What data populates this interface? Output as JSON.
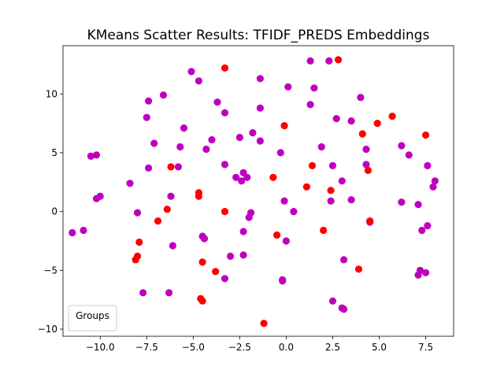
{
  "chart_data": {
    "type": "scatter",
    "title": "KMeans Scatter Results: TFIDF_PREDS Embeddings",
    "xlabel": "",
    "ylabel": "",
    "xlim": [
      -12,
      9
    ],
    "ylim": [
      -10.6,
      14.1
    ],
    "x_ticks": [
      -10,
      -7.5,
      -5,
      -2.5,
      0,
      2.5,
      5,
      7.5
    ],
    "x_tick_labels": [
      "−10.0",
      "−7.5",
      "−5.0",
      "−2.5",
      "0.0",
      "2.5",
      "5.0",
      "7.5"
    ],
    "y_ticks": [
      -10,
      -5,
      0,
      5,
      10
    ],
    "y_tick_labels": [
      "−10",
      "−5",
      "0",
      "5",
      "10"
    ],
    "grid": false,
    "legend": {
      "title": "Groups",
      "placement": "lower-left",
      "entries": []
    },
    "colors": {
      "purple": "#bf00bf",
      "red": "#ff0000"
    },
    "series": [
      {
        "color": "#bf00bf",
        "points": [
          [
            -11.5,
            -1.8
          ],
          [
            -10.9,
            -1.6
          ],
          [
            -10.5,
            4.7
          ],
          [
            -10.2,
            4.8
          ],
          [
            -10.2,
            1.1
          ],
          [
            -10.0,
            1.3
          ],
          [
            -8.4,
            2.4
          ],
          [
            -8.0,
            -0.1
          ],
          [
            -7.7,
            -6.9
          ],
          [
            -7.5,
            8.0
          ],
          [
            -7.4,
            9.4
          ],
          [
            -7.4,
            3.7
          ],
          [
            -7.1,
            5.8
          ],
          [
            -6.6,
            9.9
          ],
          [
            -6.3,
            -6.9
          ],
          [
            -6.2,
            1.3
          ],
          [
            -6.1,
            -2.9
          ],
          [
            -5.8,
            3.8
          ],
          [
            -5.7,
            5.5
          ],
          [
            -5.5,
            7.1
          ],
          [
            -5.1,
            11.9
          ],
          [
            -4.7,
            11.1
          ],
          [
            -4.5,
            -2.1
          ],
          [
            -4.4,
            -2.3
          ],
          [
            -4.3,
            5.3
          ],
          [
            -4.0,
            6.1
          ],
          [
            -3.7,
            9.3
          ],
          [
            -3.3,
            8.4
          ],
          [
            -3.3,
            -5.7
          ],
          [
            -3.3,
            4.0
          ],
          [
            -3.0,
            -3.8
          ],
          [
            -2.7,
            2.9
          ],
          [
            -2.5,
            6.3
          ],
          [
            -2.4,
            2.6
          ],
          [
            -2.3,
            3.3
          ],
          [
            -2.3,
            -3.7
          ],
          [
            -2.3,
            -1.7
          ],
          [
            -2.1,
            2.9
          ],
          [
            -2.0,
            -0.5
          ],
          [
            -1.9,
            -0.1
          ],
          [
            -1.8,
            6.7
          ],
          [
            -1.4,
            8.8
          ],
          [
            -1.4,
            11.3
          ],
          [
            -1.4,
            6.0
          ],
          [
            -0.3,
            5.0
          ],
          [
            -0.2,
            -5.9
          ],
          [
            -0.2,
            -5.8
          ],
          [
            -0.1,
            0.9
          ],
          [
            0.0,
            -2.5
          ],
          [
            0.1,
            10.6
          ],
          [
            0.4,
            0.0
          ],
          [
            1.3,
            12.8
          ],
          [
            1.3,
            9.1
          ],
          [
            1.5,
            10.5
          ],
          [
            1.9,
            5.5
          ],
          [
            2.3,
            12.8
          ],
          [
            2.4,
            0.9
          ],
          [
            2.5,
            3.9
          ],
          [
            2.5,
            -7.6
          ],
          [
            2.7,
            7.9
          ],
          [
            3.0,
            2.6
          ],
          [
            3.0,
            -8.2
          ],
          [
            3.1,
            -4.1
          ],
          [
            3.1,
            -8.3
          ],
          [
            3.5,
            7.7
          ],
          [
            3.5,
            1.0
          ],
          [
            4.0,
            9.7
          ],
          [
            4.3,
            5.3
          ],
          [
            4.3,
            4.0
          ],
          [
            4.5,
            -0.9
          ],
          [
            6.2,
            5.6
          ],
          [
            6.2,
            0.8
          ],
          [
            6.6,
            4.8
          ],
          [
            7.1,
            0.6
          ],
          [
            7.1,
            -5.4
          ],
          [
            7.2,
            -5.0
          ],
          [
            7.3,
            -1.6
          ],
          [
            7.5,
            -5.2
          ],
          [
            7.6,
            3.9
          ],
          [
            7.6,
            -1.2
          ],
          [
            7.9,
            2.1
          ],
          [
            8.0,
            2.6
          ]
        ]
      },
      {
        "color": "#ff0000",
        "points": [
          [
            -8.1,
            -4.1
          ],
          [
            -8.0,
            -3.8
          ],
          [
            -7.9,
            -2.6
          ],
          [
            -6.9,
            -0.8
          ],
          [
            -6.4,
            0.2
          ],
          [
            -6.2,
            3.8
          ],
          [
            -4.7,
            1.6
          ],
          [
            -4.7,
            1.3
          ],
          [
            -4.6,
            -7.4
          ],
          [
            -4.5,
            -7.6
          ],
          [
            -4.5,
            -4.3
          ],
          [
            -3.8,
            -5.1
          ],
          [
            -3.3,
            12.2
          ],
          [
            -3.3,
            0.0
          ],
          [
            -1.2,
            -9.5
          ],
          [
            -0.7,
            2.9
          ],
          [
            -0.5,
            -2.0
          ],
          [
            -0.1,
            7.3
          ],
          [
            1.1,
            2.1
          ],
          [
            1.4,
            3.9
          ],
          [
            2.0,
            -1.6
          ],
          [
            2.4,
            1.8
          ],
          [
            2.8,
            12.9
          ],
          [
            3.9,
            -4.9
          ],
          [
            4.1,
            6.6
          ],
          [
            4.4,
            3.5
          ],
          [
            4.5,
            -0.8
          ],
          [
            4.9,
            7.5
          ],
          [
            5.7,
            8.1
          ],
          [
            7.5,
            6.5
          ]
        ]
      }
    ]
  }
}
